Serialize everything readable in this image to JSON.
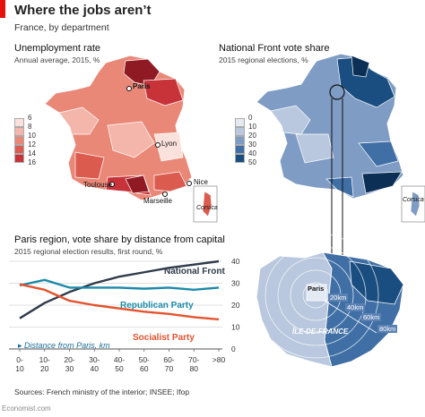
{
  "header": {
    "title": "Where the jobs aren’t",
    "subtitle": "France, by department"
  },
  "left_map": {
    "title": "Unemployment rate",
    "subtitle": "Annual average, 2015, %",
    "legend": [
      "6",
      "8",
      "10",
      "12",
      "14",
      "16"
    ],
    "legend_colors": [
      "#fbe1dc",
      "#f4b5aa",
      "#ea8878",
      "#dc5b4f",
      "#c8333a",
      "#8f1a24"
    ],
    "cities": [
      "Paris",
      "Lyon",
      "Toulouse",
      "Marseille",
      "Nice",
      "Corsica"
    ]
  },
  "right_map": {
    "title": "National Front vote share",
    "subtitle": "2015 regional elections, %",
    "legend": [
      "0",
      "10",
      "20",
      "30",
      "40",
      "50"
    ],
    "legend_colors": [
      "#e4eaf3",
      "#b9c8de",
      "#7f9cc4",
      "#3f6fa5",
      "#1a4d80",
      "#0c2f55"
    ],
    "cities": [
      "Corsica"
    ]
  },
  "line_chart": {
    "title": "Paris region, vote share by distance from capital",
    "subtitle": "2015 regional election results, first round, %",
    "distance_note": "Distance from Paris, km",
    "series_labels": [
      "National Front",
      "Republican Party",
      "Socialist Party"
    ]
  },
  "zoom_map": {
    "labels": [
      "Paris",
      "20km",
      "40km",
      "60km",
      "80km",
      "ÎLE-DE-FRANCE"
    ]
  },
  "chart_data": {
    "type": "line",
    "title": "Paris region, vote share by distance from capital",
    "subtitle": "2015 regional election results, first round, %",
    "categories": [
      "0-\n10",
      "10-\n20",
      "20-\n30",
      "30-\n40",
      "40-\n50",
      "50-\n60",
      "60-\n70",
      "70-\n80",
      ">80"
    ],
    "x_ticks": [
      "0-",
      "10-",
      "20-",
      "30-",
      "40-",
      "50-",
      "60-",
      "70-",
      ">80"
    ],
    "x_ticks_line2": [
      "10",
      "20",
      "30",
      "40",
      "50",
      "60",
      "70",
      "80",
      ""
    ],
    "xlabel": "Distance from Paris, km",
    "ylim": [
      0,
      40
    ],
    "yticks": [
      "0",
      "10",
      "20",
      "30",
      "40"
    ],
    "y_axis_position": "right",
    "grid": true,
    "series": [
      {
        "name": "National Front",
        "color": "#2e3b4a",
        "values": [
          14,
          21,
          26,
          30,
          33,
          35,
          37,
          38.5,
          40
        ]
      },
      {
        "name": "Republican Party",
        "color": "#1b8aa8",
        "values": [
          29,
          31.5,
          28,
          28,
          28,
          27.5,
          28,
          27,
          28
        ]
      },
      {
        "name": "Socialist Party",
        "color": "#e4532e",
        "values": [
          29.5,
          27,
          22,
          20,
          18.5,
          17,
          16,
          14.5,
          13.5
        ]
      }
    ]
  },
  "footer": {
    "sources": "Sources: French ministry of the interior; INSEE; Ifop",
    "brand": "Economist.com"
  }
}
